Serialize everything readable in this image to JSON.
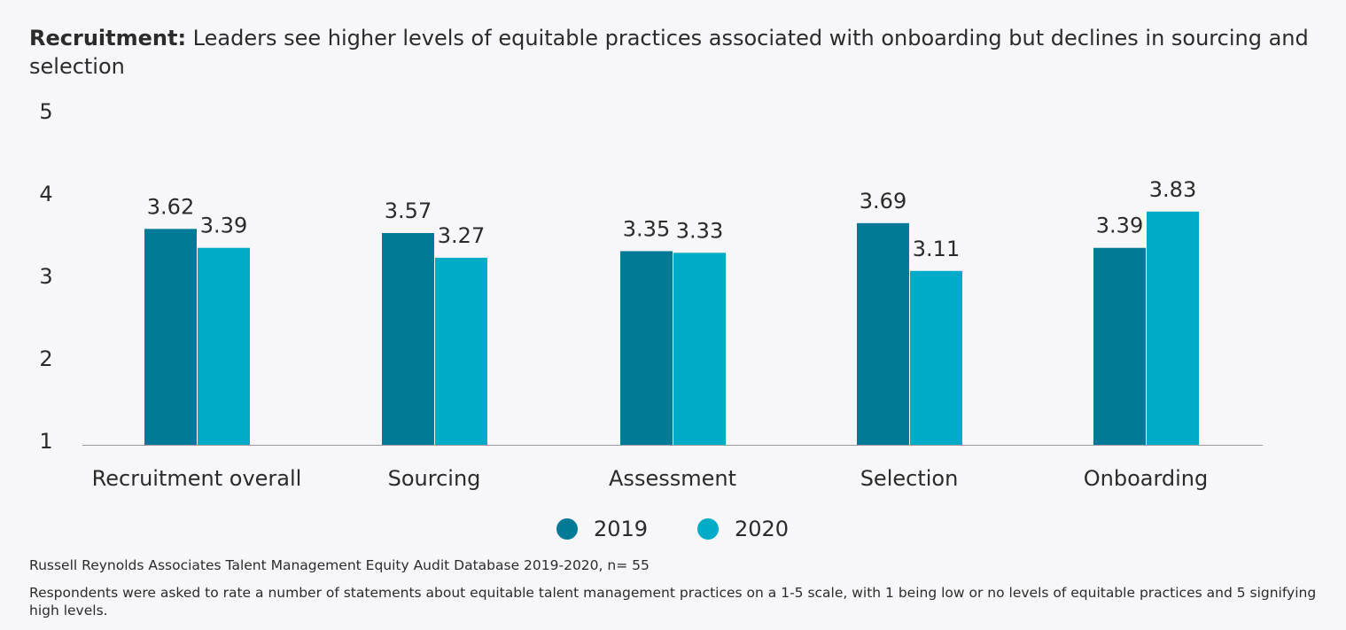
{
  "title_bold": "Recruitment:",
  "title_rest": " Leaders see higher levels of equitable practices associated with onboarding but declines in sourcing and selection",
  "source": "Russell Reynolds Associates Talent Management Equity Audit Database 2019-2020, n= 55",
  "footnote": "Respondents were asked to rate a number of statements about equitable talent management practices on a 1-5 scale, with 1 being low or no levels of equitable practices and 5 signifying high levels.",
  "chart_data": {
    "type": "bar",
    "categories": [
      "Recruitment overall",
      "Sourcing",
      "Assessment",
      "Selection",
      "Onboarding"
    ],
    "series": [
      {
        "name": "2019",
        "values": [
          3.62,
          3.57,
          3.35,
          3.69,
          3.39
        ],
        "color": "#007a96"
      },
      {
        "name": "2020",
        "values": [
          3.39,
          3.27,
          3.33,
          3.11,
          3.83
        ],
        "color": "#00abc7"
      }
    ],
    "ylim": [
      1,
      5
    ],
    "yticks": [
      1,
      2,
      3,
      4,
      5
    ],
    "grid": false,
    "legend": "bottom-center",
    "data_labels": true
  }
}
